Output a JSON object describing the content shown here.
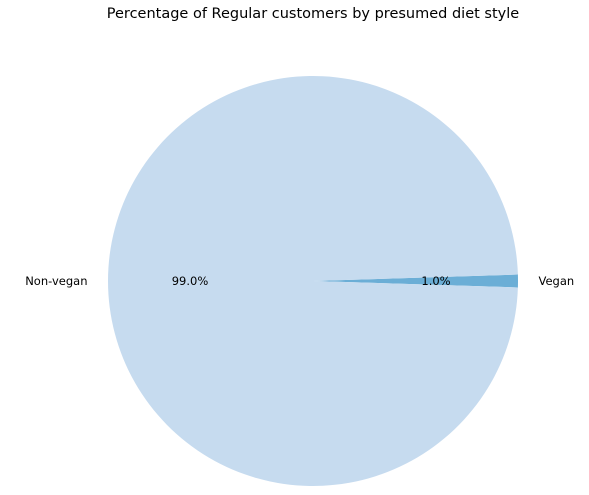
{
  "chart_data": {
    "type": "pie",
    "title": "Percentage of Regular customers by presumed diet style",
    "slices": [
      {
        "label": "Vegan",
        "value": 1.0,
        "pct_label": "1.0%",
        "color": "#6baed6"
      },
      {
        "label": "Non-vegan",
        "value": 99.0,
        "pct_label": "99.0%",
        "color": "#c6dbef"
      }
    ],
    "start_angle_deg": 0,
    "direction": "counterclockwise"
  }
}
